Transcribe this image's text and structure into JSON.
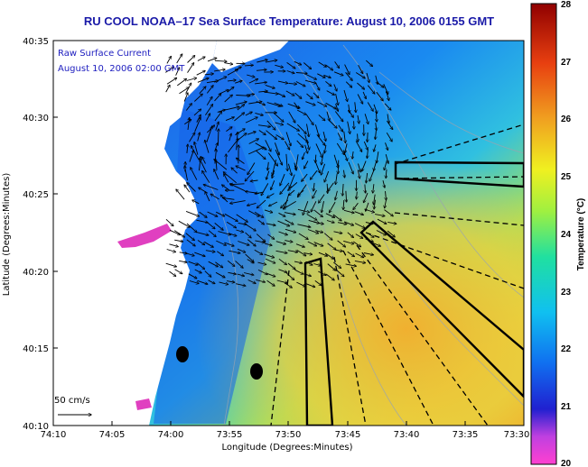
{
  "title": "RU COOL  NOAA–17  Sea Surface Temperature:  August 10, 2006 0155 GMT",
  "legend": {
    "line1": "Raw Surface Current",
    "line2": "August 10, 2006 02:00 GMT",
    "scale_label": "50 cm/s"
  },
  "axes": {
    "xlabel": "Longitude (Degrees:Minutes)",
    "ylabel": "Latitude (Degrees:Minutes)",
    "xticks": [
      "74:10",
      "74:05",
      "74:00",
      "73:55",
      "73:50",
      "73:45",
      "73:40",
      "73:35",
      "73:30"
    ],
    "yticks": [
      "40:35",
      "40:30",
      "40:25",
      "40:20",
      "40:15",
      "40:10"
    ]
  },
  "colorbar": {
    "label": "Temperature (°C)",
    "ticks": [
      "28",
      "27",
      "26",
      "25",
      "24",
      "23",
      "22",
      "21",
      "20"
    ],
    "min": 20,
    "max": 28
  },
  "colors": {
    "title": "#1a1aa8",
    "land": "#ffffff",
    "warm": "#f0c020",
    "cool": "#1c6ef0"
  }
}
